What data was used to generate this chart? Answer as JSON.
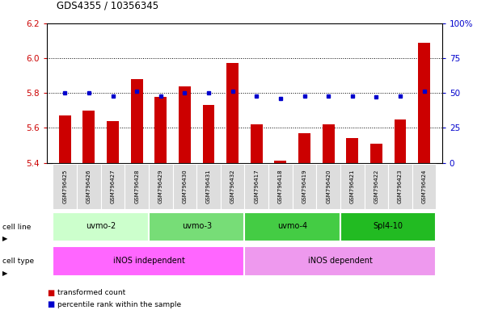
{
  "title": "GDS4355 / 10356345",
  "samples": [
    "GSM796425",
    "GSM796426",
    "GSM796427",
    "GSM796428",
    "GSM796429",
    "GSM796430",
    "GSM796431",
    "GSM796432",
    "GSM796417",
    "GSM796418",
    "GSM796419",
    "GSM796420",
    "GSM796421",
    "GSM796422",
    "GSM796423",
    "GSM796424"
  ],
  "transformed_count": [
    5.67,
    5.7,
    5.64,
    5.88,
    5.78,
    5.84,
    5.73,
    5.97,
    5.62,
    5.41,
    5.57,
    5.62,
    5.54,
    5.51,
    5.65,
    6.09
  ],
  "percentile_rank": [
    50,
    50,
    48,
    51,
    48,
    50,
    50,
    51,
    48,
    46,
    48,
    48,
    48,
    47,
    48,
    51
  ],
  "ylim_left": [
    5.4,
    6.2
  ],
  "ylim_right": [
    0,
    100
  ],
  "yticks_left": [
    5.4,
    5.6,
    5.8,
    6.0,
    6.2
  ],
  "yticks_right": [
    0,
    25,
    50,
    75,
    100
  ],
  "ytick_labels_right": [
    "0",
    "25",
    "50",
    "75",
    "100%"
  ],
  "cell_lines": [
    {
      "label": "uvmo-2",
      "start": 0,
      "end": 3,
      "color": "#ccffcc"
    },
    {
      "label": "uvmo-3",
      "start": 4,
      "end": 7,
      "color": "#77dd77"
    },
    {
      "label": "uvmo-4",
      "start": 8,
      "end": 11,
      "color": "#33bb33"
    },
    {
      "label": "Spl4-10",
      "start": 12,
      "end": 15,
      "color": "#22cc22"
    }
  ],
  "cell_types": [
    {
      "label": "iNOS independent",
      "start": 0,
      "end": 7,
      "color": "#ff66ff"
    },
    {
      "label": "iNOS dependent",
      "start": 8,
      "end": 15,
      "color": "#ee99ee"
    }
  ],
  "bar_color": "#cc0000",
  "dot_color": "#0000cc",
  "grid_color": "#000000",
  "left_label_color": "#cc0000",
  "right_label_color": "#0000cc",
  "legend_red_label": "transformed count",
  "legend_blue_label": "percentile rank within the sample",
  "bar_width": 0.5
}
